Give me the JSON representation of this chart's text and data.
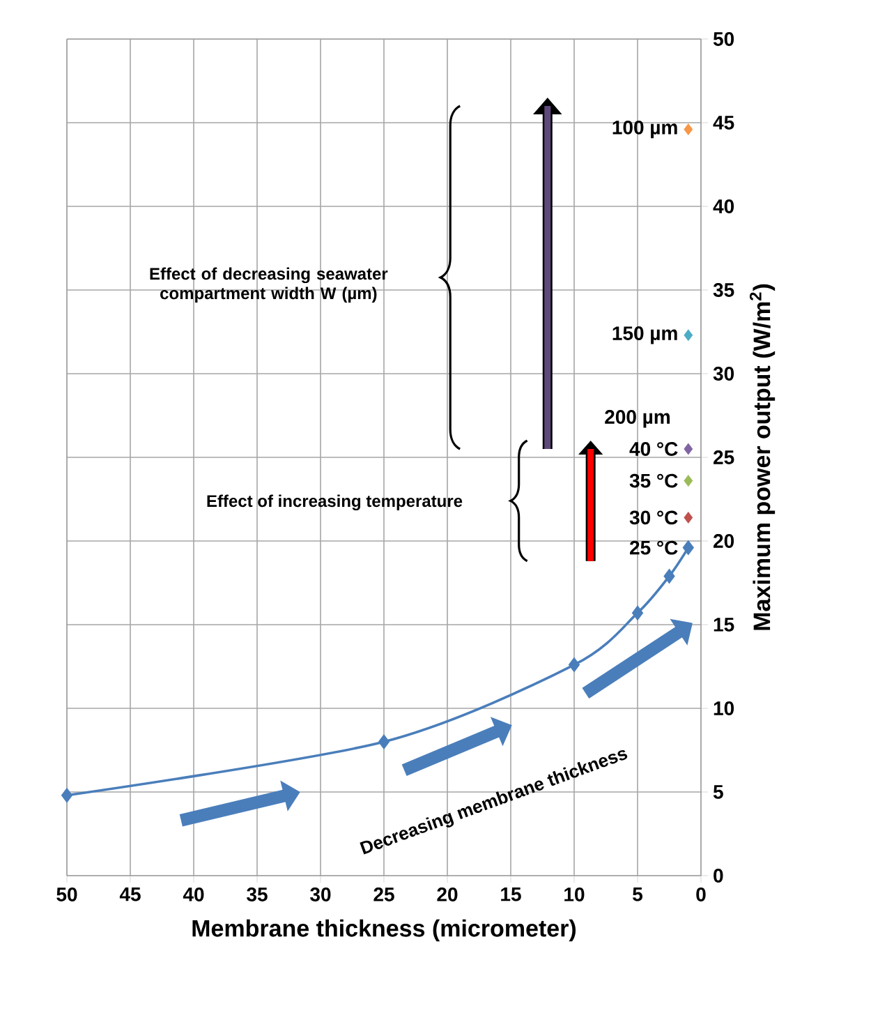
{
  "chart_data": {
    "type": "line",
    "xlabel": "Membrane thickness (micrometer)",
    "ylabel": "Maximum power output (W/m$^{2}$)",
    "xlim": [
      50,
      0
    ],
    "xticks": [
      50,
      45,
      40,
      35,
      30,
      25,
      20,
      15,
      10,
      5,
      0
    ],
    "ylim": [
      0,
      50
    ],
    "yticks": [
      0,
      5,
      10,
      15,
      20,
      25,
      30,
      35,
      40,
      45,
      50
    ],
    "grid": true,
    "marker": "diamond",
    "series": [
      {
        "name": "25 °C",
        "color": "#4a7ebb",
        "x": [
          50,
          25,
          10,
          5,
          2.5,
          1
        ],
        "values": [
          4.8,
          8.0,
          12.6,
          15.7,
          17.9,
          19.6
        ]
      },
      {
        "name": "30 °C",
        "type": "scatter",
        "color": "#c0504d",
        "x": [
          1
        ],
        "values": [
          21.4
        ]
      },
      {
        "name": "35 °C",
        "type": "scatter",
        "color": "#9bbb59",
        "x": [
          1
        ],
        "values": [
          23.6
        ]
      },
      {
        "name": "40 °C",
        "type": "scatter",
        "color": "#8064a2",
        "x": [
          1
        ],
        "values": [
          25.5
        ]
      },
      {
        "name": "150 µm",
        "type": "scatter",
        "color": "#4bacc6",
        "x": [
          1
        ],
        "values": [
          32.3
        ]
      },
      {
        "name": "100 µm",
        "type": "scatter",
        "color": "#f79646",
        "x": [
          1
        ],
        "values": [
          44.6
        ]
      }
    ],
    "annotations": [
      "Effect of decreasing seawater compartment width W (µm)",
      "Effect of increasing temperature",
      "Decreasing membrane thickness",
      "200 µm"
    ]
  }
}
